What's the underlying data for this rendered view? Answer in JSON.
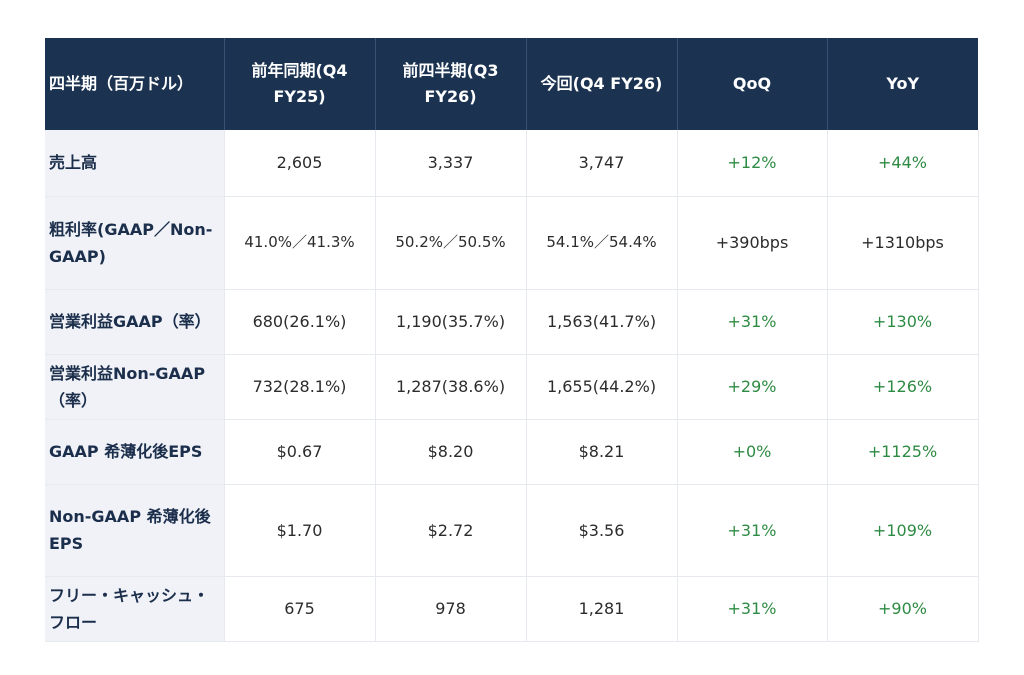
{
  "table": {
    "headers": [
      "四半期（百万ドル）",
      "前年同期(Q4 FY25)",
      "前四半期(Q3 FY26)",
      "今回(Q4 FY26)",
      "QoQ",
      "YoY"
    ],
    "rows": [
      {
        "label": "売上高",
        "prev_year": "2,605",
        "prev_q": "3,337",
        "current": "3,747",
        "qoq": "+12%",
        "yoy": "+44%"
      },
      {
        "label": "粗利率(GAAP／Non-GAAP)",
        "prev_year": "41.0%／41.3%",
        "prev_q": "50.2%／50.5%",
        "current": "54.1%／54.4%",
        "qoq": "+390bps",
        "yoy": "+1310bps"
      },
      {
        "label": "営業利益GAAP（率）",
        "prev_year": "680(26.1%)",
        "prev_q": "1,190(35.7%)",
        "current": "1,563(41.7%)",
        "qoq": "+31%",
        "yoy": "+130%"
      },
      {
        "label": "営業利益Non-GAAP（率）",
        "prev_year": "732(28.1%)",
        "prev_q": "1,287(38.6%)",
        "current": "1,655(44.2%)",
        "qoq": "+29%",
        "yoy": "+126%"
      },
      {
        "label": "GAAP 希薄化後EPS",
        "prev_year": "$0.67",
        "prev_q": "$8.20",
        "current": "$8.21",
        "qoq": "+0%",
        "yoy": "+1125%"
      },
      {
        "label": "Non-GAAP 希薄化後EPS",
        "prev_year": "$1.70",
        "prev_q": "$2.72",
        "current": "$3.56",
        "qoq": "+31%",
        "yoy": "+109%"
      },
      {
        "label": "フリー・キャッシュ・フロー",
        "prev_year": "675",
        "prev_q": "978",
        "current": "1,281",
        "qoq": "+31%",
        "yoy": "+90%"
      }
    ]
  },
  "colors": {
    "header_bg": "#1b3351",
    "label_bg": "#f0f2f7",
    "positive": "#2e8b43"
  }
}
